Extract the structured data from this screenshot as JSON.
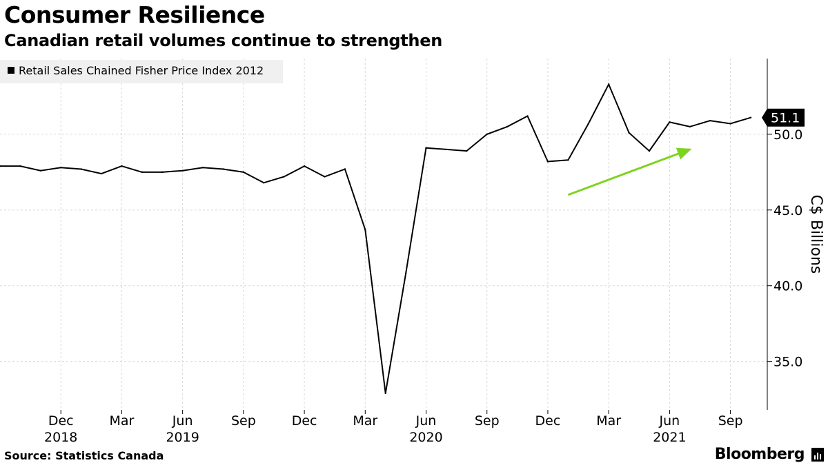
{
  "header": {
    "title": "Consumer Resilience",
    "subtitle": "Canadian retail volumes continue to strengthen"
  },
  "footer": {
    "source": "Source: Statistics Canada",
    "brand": "Bloomberg"
  },
  "colors": {
    "line": "#000000",
    "arrow": "#7ed321",
    "grid": "#d9d9d9",
    "legend_bg": "#f0f0f0"
  },
  "chart_data": {
    "type": "line",
    "legend": {
      "placement": "top-left",
      "entries": [
        "Retail Sales Chained Fisher Price Index 2012"
      ]
    },
    "ylabel": "C$ Billions",
    "ylim": [
      31.8,
      55.0
    ],
    "yticks": [
      35.0,
      40.0,
      45.0,
      50.0
    ],
    "ytick_labels": [
      "35.0",
      "40.0",
      "45.0",
      "50.0"
    ],
    "grid": true,
    "last_value_label": "51.1",
    "x_range": [
      "2018-09",
      "2021-10"
    ],
    "x_ticks": [
      {
        "month": "2018-12",
        "label": "Dec",
        "year": "2018"
      },
      {
        "month": "2019-03",
        "label": "Mar",
        "year": ""
      },
      {
        "month": "2019-06",
        "label": "Jun",
        "year": "2019"
      },
      {
        "month": "2019-09",
        "label": "Sep",
        "year": ""
      },
      {
        "month": "2019-12",
        "label": "Dec",
        "year": ""
      },
      {
        "month": "2020-03",
        "label": "Mar",
        "year": ""
      },
      {
        "month": "2020-06",
        "label": "Jun",
        "year": "2020"
      },
      {
        "month": "2020-09",
        "label": "Sep",
        "year": ""
      },
      {
        "month": "2020-12",
        "label": "Dec",
        "year": ""
      },
      {
        "month": "2021-03",
        "label": "Mar",
        "year": ""
      },
      {
        "month": "2021-06",
        "label": "Jun",
        "year": "2021"
      },
      {
        "month": "2021-09",
        "label": "Sep",
        "year": ""
      }
    ],
    "series": [
      {
        "name": "Retail Sales Chained Fisher Price Index 2012",
        "points": [
          {
            "x": "2018-09",
            "y": 47.9
          },
          {
            "x": "2018-10",
            "y": 47.9
          },
          {
            "x": "2018-11",
            "y": 47.6
          },
          {
            "x": "2018-12",
            "y": 47.8
          },
          {
            "x": "2019-01",
            "y": 47.7
          },
          {
            "x": "2019-02",
            "y": 47.4
          },
          {
            "x": "2019-03",
            "y": 47.9
          },
          {
            "x": "2019-04",
            "y": 47.5
          },
          {
            "x": "2019-05",
            "y": 47.5
          },
          {
            "x": "2019-06",
            "y": 47.6
          },
          {
            "x": "2019-07",
            "y": 47.8
          },
          {
            "x": "2019-08",
            "y": 47.7
          },
          {
            "x": "2019-09",
            "y": 47.5
          },
          {
            "x": "2019-10",
            "y": 46.8
          },
          {
            "x": "2019-11",
            "y": 47.2
          },
          {
            "x": "2019-12",
            "y": 47.9
          },
          {
            "x": "2020-01",
            "y": 47.2
          },
          {
            "x": "2020-02",
            "y": 47.7
          },
          {
            "x": "2020-03",
            "y": 43.7
          },
          {
            "x": "2020-04",
            "y": 32.9
          },
          {
            "x": "2020-05",
            "y": 40.8
          },
          {
            "x": "2020-06",
            "y": 49.1
          },
          {
            "x": "2020-07",
            "y": 49.0
          },
          {
            "x": "2020-08",
            "y": 48.9
          },
          {
            "x": "2020-09",
            "y": 50.0
          },
          {
            "x": "2020-10",
            "y": 50.5
          },
          {
            "x": "2020-11",
            "y": 51.2
          },
          {
            "x": "2020-12",
            "y": 48.2
          },
          {
            "x": "2021-01",
            "y": 48.3
          },
          {
            "x": "2021-02",
            "y": 50.7
          },
          {
            "x": "2021-03",
            "y": 53.3
          },
          {
            "x": "2021-04",
            "y": 50.1
          },
          {
            "x": "2021-05",
            "y": 48.9
          },
          {
            "x": "2021-06",
            "y": 50.8
          },
          {
            "x": "2021-07",
            "y": 50.5
          },
          {
            "x": "2021-08",
            "y": 50.9
          },
          {
            "x": "2021-09",
            "y": 50.7
          },
          {
            "x": "2021-10",
            "y": 51.1
          }
        ]
      }
    ],
    "annotations": [
      {
        "type": "arrow",
        "from": {
          "x": "2021-01",
          "y": 46.0
        },
        "to": {
          "x": "2021-07",
          "y": 49.0
        }
      }
    ]
  }
}
